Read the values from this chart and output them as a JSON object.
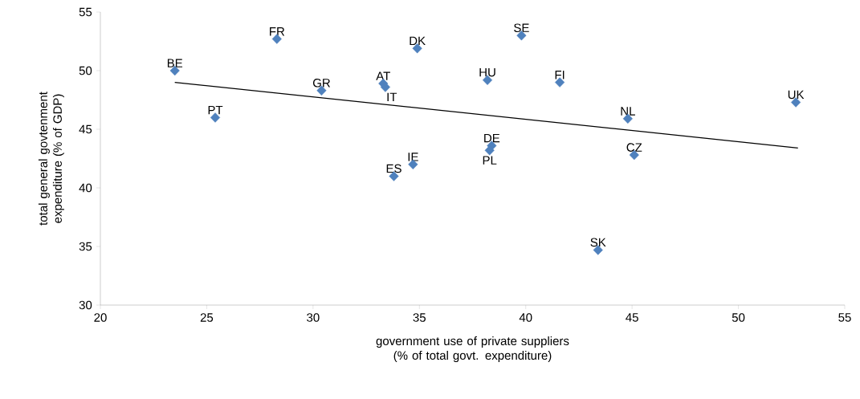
{
  "chart_data": {
    "type": "scatter",
    "xlabel": "government use of private suppliers (% of total govt. expenditure)",
    "ylabel": "total general govtenment expenditure (% of GDP)",
    "xlim": [
      20,
      55
    ],
    "xticks": [
      20,
      25,
      30,
      35,
      40,
      45,
      50,
      55
    ],
    "ylim": [
      30,
      55
    ],
    "yticks": [
      30,
      35,
      40,
      45,
      50,
      55
    ],
    "grid": false,
    "marker": "diamond",
    "series": [
      {
        "color": "#4f81bd",
        "x": [
          23.5,
          25.4,
          28.3,
          30.4,
          33.3,
          33.4,
          34.9,
          34.7,
          33.8,
          38.2,
          39.8,
          41.6,
          38.4,
          38.3,
          44.8,
          45.1,
          43.4,
          52.7
        ],
        "values": [
          50.0,
          46.0,
          52.7,
          48.3,
          48.9,
          48.6,
          51.9,
          42.0,
          41.0,
          49.2,
          53.0,
          49.0,
          43.6,
          43.2,
          45.9,
          42.8,
          34.7,
          47.3
        ]
      },
      {
        "type": "line",
        "color": "#000000",
        "marker": "none",
        "line_style": "solid",
        "x": [
          23.5,
          52.8
        ],
        "values": [
          49.0,
          43.4
        ]
      }
    ],
    "annotations": [
      {
        "text": "BE",
        "x": 23.5,
        "y": 50.0
      },
      {
        "text": "PT",
        "x": 25.4,
        "y": 46.0
      },
      {
        "text": "FR",
        "x": 28.3,
        "y": 52.7
      },
      {
        "text": "GR",
        "x": 30.4,
        "y": 48.3
      },
      {
        "text": "AT",
        "x": 33.3,
        "y": 48.9
      },
      {
        "text": "IT",
        "x": 33.4,
        "y": 48.6
      },
      {
        "text": "DK",
        "x": 34.9,
        "y": 51.9
      },
      {
        "text": "IE",
        "x": 34.7,
        "y": 42.0
      },
      {
        "text": "ES",
        "x": 33.8,
        "y": 41.0
      },
      {
        "text": "HU",
        "x": 38.2,
        "y": 49.2
      },
      {
        "text": "SE",
        "x": 39.8,
        "y": 53.0
      },
      {
        "text": "FI",
        "x": 41.6,
        "y": 49.0
      },
      {
        "text": "DE",
        "x": 38.4,
        "y": 43.6
      },
      {
        "text": "PL",
        "x": 38.3,
        "y": 43.2
      },
      {
        "text": "NL",
        "x": 44.8,
        "y": 45.9
      },
      {
        "text": "CZ",
        "x": 45.1,
        "y": 42.8
      },
      {
        "text": "SK",
        "x": 43.4,
        "y": 34.7
      },
      {
        "text": "UK",
        "x": 52.7,
        "y": 47.3
      }
    ]
  }
}
